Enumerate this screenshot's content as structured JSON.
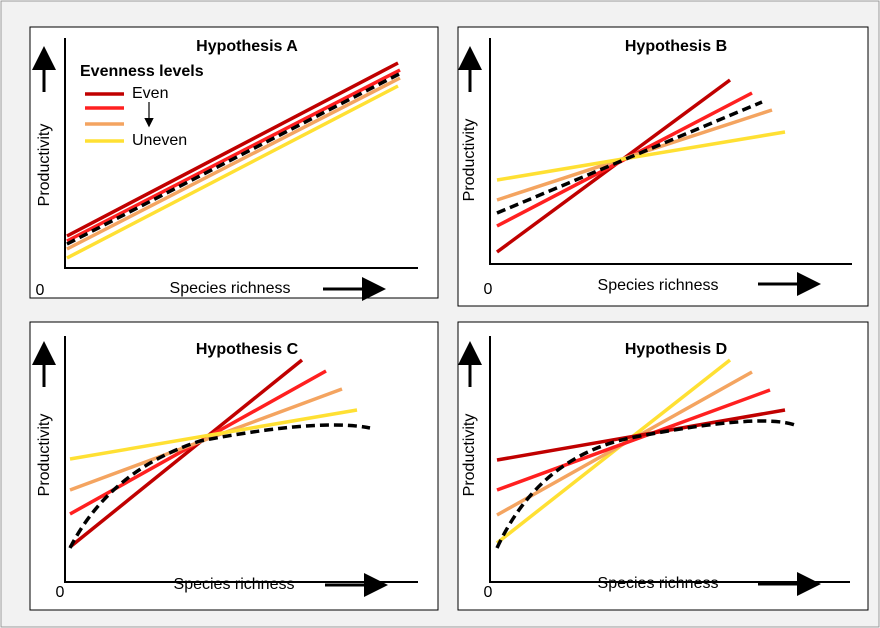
{
  "panels": [
    {
      "title": "Hypothesis A",
      "y_label": "Productivity",
      "x_label": "Species richness",
      "origin": "0"
    },
    {
      "title": "Hypothesis B",
      "y_label": "Productivity",
      "x_label": "Species richness",
      "origin": "0"
    },
    {
      "title": "Hypothesis C",
      "y_label": "Productivity",
      "x_label": "Species richness",
      "origin": "0"
    },
    {
      "title": "Hypothesis D",
      "y_label": "Productivity",
      "x_label": "Species richness",
      "origin": "0"
    }
  ],
  "legend": {
    "title": "Evenness levels",
    "items": [
      "Even",
      "Uneven"
    ]
  }
}
